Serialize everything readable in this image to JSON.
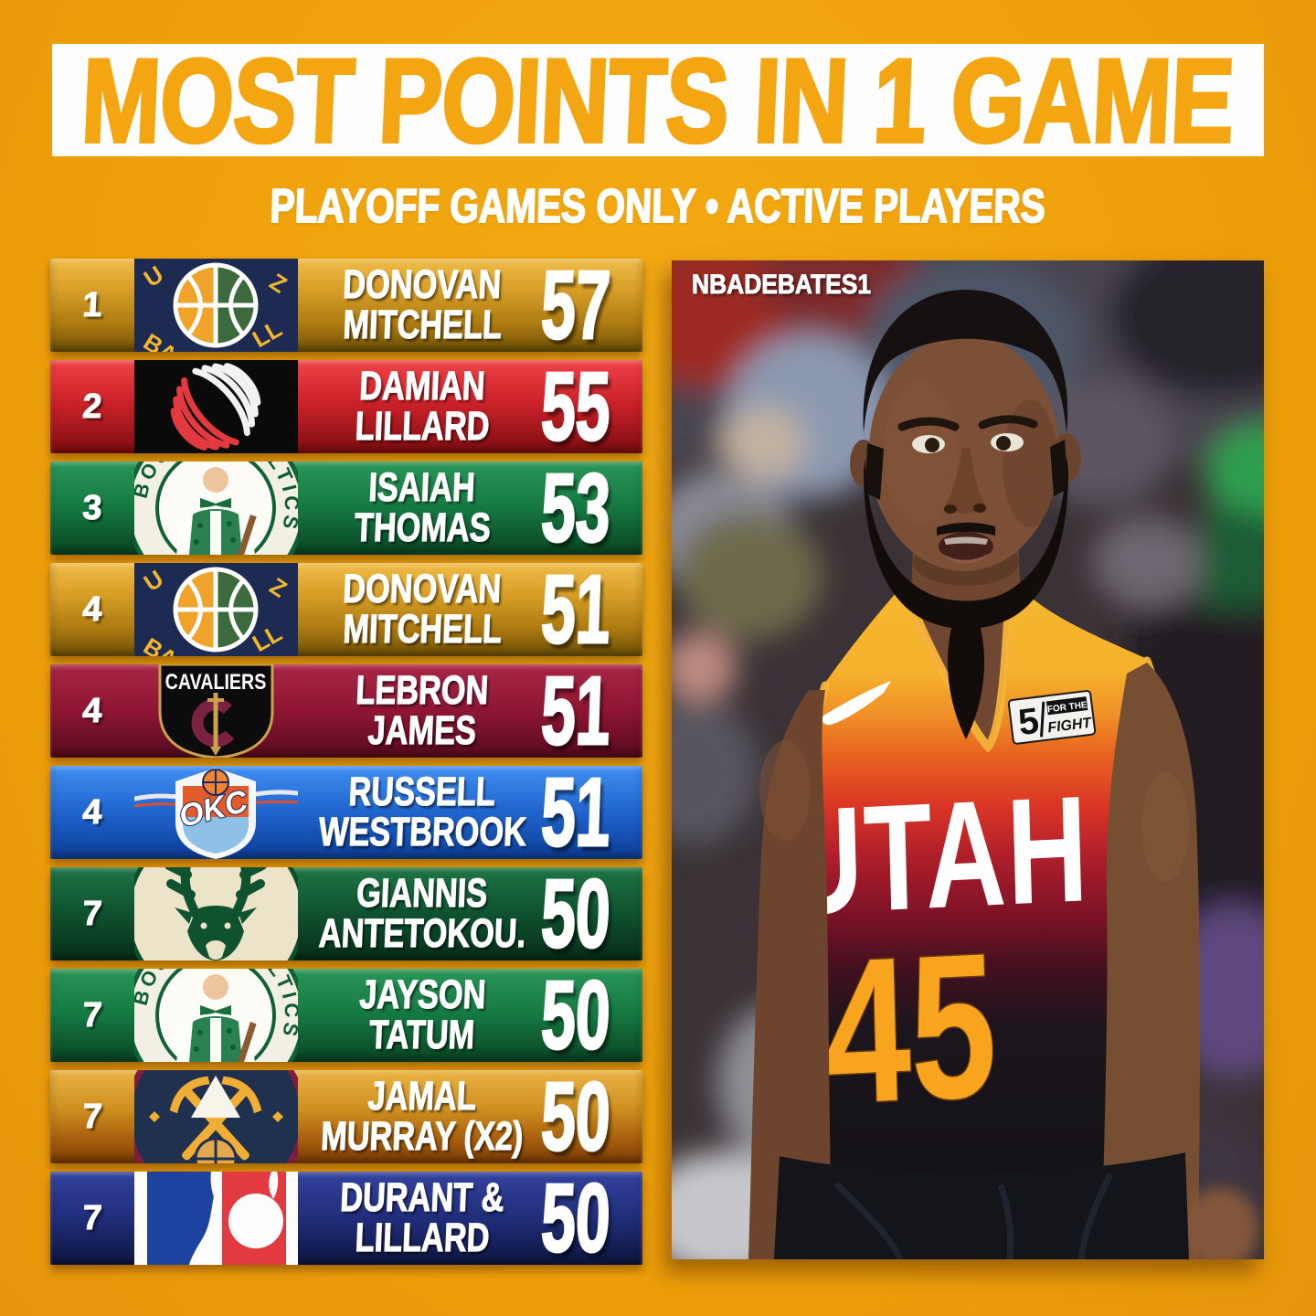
{
  "title": "MOST POINTS IN 1 GAME",
  "subtitle": "PLAYOFF GAMES ONLY • ACTIVE PLAYERS",
  "watermark": "NBADEBATES1",
  "colors": {
    "background": "#eea00a",
    "title_band": "#fdfdfd",
    "title_text": "#f3a512",
    "subtitle_text": "#ffffff",
    "row_text": "#ffffff",
    "jersey_number_gold": "#f9a41f"
  },
  "rows": [
    {
      "rank": "1",
      "team": "utah-jazz",
      "line1": "DONOVAN",
      "line2": "MITCHELL",
      "points": "57",
      "color": "#d9a028"
    },
    {
      "rank": "2",
      "team": "trail-blazers",
      "line1": "DAMIAN",
      "line2": "LILLARD",
      "points": "55",
      "color": "#e03a3e"
    },
    {
      "rank": "3",
      "team": "celtics",
      "line1": "ISAIAH",
      "line2": "THOMAS",
      "points": "53",
      "color": "#157a42"
    },
    {
      "rank": "4",
      "team": "utah-jazz",
      "line1": "DONOVAN",
      "line2": "MITCHELL",
      "points": "51",
      "color": "#d9a028"
    },
    {
      "rank": "4",
      "team": "cavaliers",
      "line1": "LEBRON",
      "line2": "JAMES",
      "points": "51",
      "color": "#8e1634"
    },
    {
      "rank": "4",
      "team": "thunder",
      "line1": "RUSSELL",
      "line2": "WESTBROOK",
      "points": "51",
      "color": "#1f64cd"
    },
    {
      "rank": "7",
      "team": "bucks",
      "line1": "GIANNIS",
      "line2": "ANTETOKOU.",
      "points": "50",
      "color": "#0f5230"
    },
    {
      "rank": "7",
      "team": "celtics",
      "line1": "JAYSON",
      "line2": "TATUM",
      "points": "50",
      "color": "#157a42"
    },
    {
      "rank": "7",
      "team": "nuggets",
      "line1": "JAMAL",
      "line2": "MURRAY (X2)",
      "points": "50",
      "color": "#cf8f1f"
    },
    {
      "rank": "7",
      "team": "nba",
      "line1": "DURANT &",
      "line2": "LILLARD",
      "points": "50",
      "color": "#1d429f"
    }
  ],
  "logo_text": {
    "cavaliers": "CAVALIERS",
    "okc": "OKC",
    "celtics_left": "BOSTON",
    "celtics_right": "CELTICS",
    "jazz_fragments": [
      "U",
      "Z",
      "BA",
      "LL"
    ]
  },
  "photo": {
    "jersey_wordmark": "UTAH",
    "jersey_number": "45",
    "patch_number": "5",
    "patch_line1": "FOR THE",
    "patch_line2": "FIGHT"
  }
}
